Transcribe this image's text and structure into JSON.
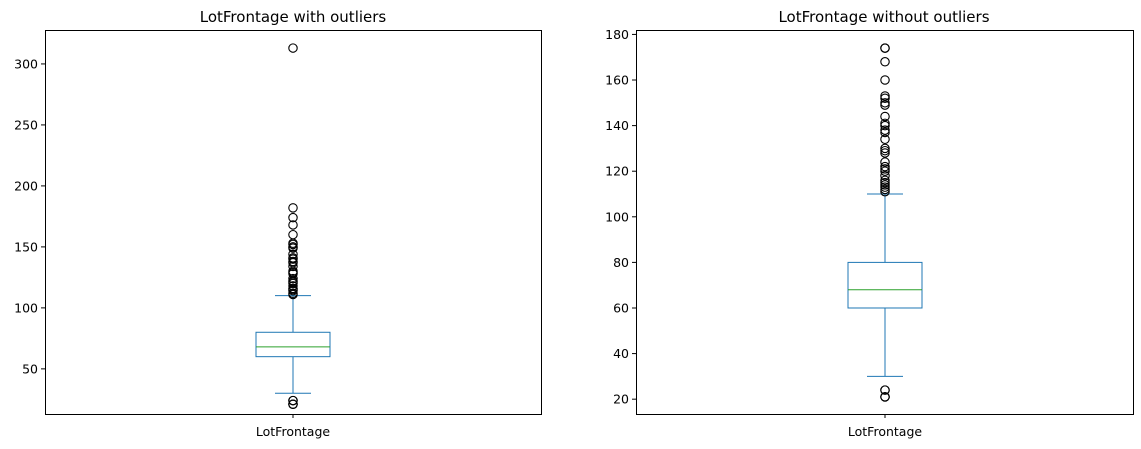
{
  "chart_data": [
    {
      "type": "box",
      "title": "LotFrontage with outliers",
      "xlabel": "",
      "ylabel": "",
      "categories": [
        "LotFrontage"
      ],
      "ylim": [
        13,
        327
      ],
      "yticks": [
        50,
        100,
        150,
        200,
        250,
        300
      ],
      "box": {
        "whisker_low": 30,
        "q1": 60,
        "median": 68,
        "q3": 80,
        "whisker_high": 110
      },
      "outliers": [
        21,
        21,
        21,
        24,
        24,
        111,
        112,
        114,
        115,
        116,
        118,
        120,
        121,
        122,
        124,
        128,
        129,
        130,
        134,
        137,
        138,
        140,
        141,
        144,
        149,
        150,
        152,
        153,
        160,
        168,
        174,
        182,
        313
      ],
      "colors": {
        "box": "#1f77b4",
        "median": "#2ca02c",
        "outlier_edge": "#000000"
      }
    },
    {
      "type": "box",
      "title": "LotFrontage without outliers",
      "xlabel": "",
      "ylabel": "",
      "categories": [
        "LotFrontage"
      ],
      "ylim": [
        13.5,
        181.5
      ],
      "yticks": [
        20,
        40,
        60,
        80,
        100,
        120,
        140,
        160,
        180
      ],
      "box": {
        "whisker_low": 30,
        "q1": 60,
        "median": 68,
        "q3": 80,
        "whisker_high": 110
      },
      "outliers": [
        21,
        21,
        21,
        24,
        24,
        111,
        112,
        113,
        114,
        115,
        116,
        118,
        120,
        121,
        122,
        124,
        128,
        129,
        130,
        134,
        137,
        138,
        140,
        141,
        144,
        149,
        150,
        152,
        153,
        160,
        168,
        174,
        174
      ],
      "colors": {
        "box": "#1f77b4",
        "median": "#2ca02c",
        "outlier_edge": "#000000"
      }
    }
  ]
}
